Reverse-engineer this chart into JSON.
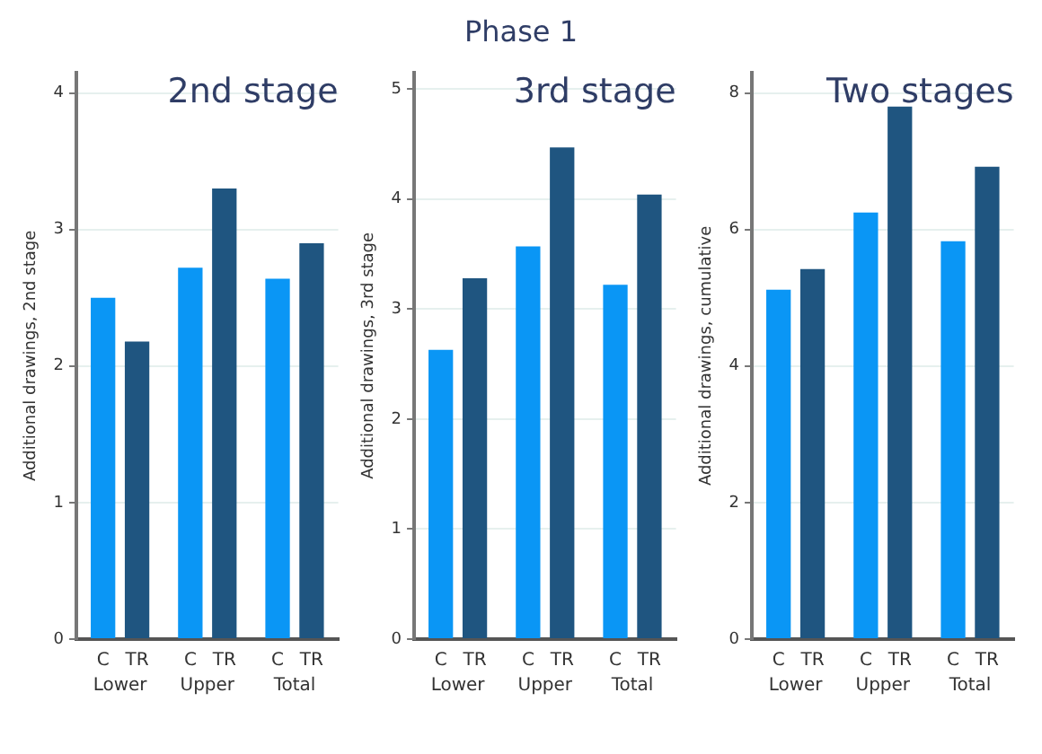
{
  "chart_data": [
    {
      "type": "other",
      "title": "Phase 1"
    },
    {
      "type": "bar",
      "title": "2nd stage",
      "ylabel": "Additional drawings, 2nd stage",
      "categories": [
        "Lower",
        "Upper",
        "Total"
      ],
      "ylim": [
        0,
        4.15
      ],
      "yticks": [
        0,
        1,
        2,
        3,
        4
      ],
      "grid": "y",
      "series": [
        {
          "name": "C",
          "color": "#0a96f5",
          "values": [
            2.5,
            2.72,
            2.64
          ]
        },
        {
          "name": "TR",
          "color": "#1f5580",
          "values": [
            2.18,
            3.3,
            2.9
          ]
        }
      ]
    },
    {
      "type": "bar",
      "title": "3rd stage",
      "ylabel": "Additional drawings, 3rd stage",
      "categories": [
        "Lower",
        "Upper",
        "Total"
      ],
      "ylim": [
        0,
        5.15
      ],
      "yticks": [
        0,
        1,
        2,
        3,
        4,
        5
      ],
      "grid": "y",
      "series": [
        {
          "name": "C",
          "color": "#0a96f5",
          "values": [
            2.63,
            3.57,
            3.22
          ]
        },
        {
          "name": "TR",
          "color": "#1f5580",
          "values": [
            3.28,
            4.47,
            4.04
          ]
        }
      ]
    },
    {
      "type": "bar",
      "title": "Two stages",
      "ylabel": "Additional drawings, cumulative",
      "categories": [
        "Lower",
        "Upper",
        "Total"
      ],
      "ylim": [
        0,
        8.3
      ],
      "yticks": [
        0,
        2,
        4,
        6,
        8
      ],
      "grid": "y",
      "series": [
        {
          "name": "C",
          "color": "#0a96f5",
          "values": [
            5.12,
            6.25,
            5.83
          ]
        },
        {
          "name": "TR",
          "color": "#1f5580",
          "values": [
            5.42,
            7.8,
            6.92
          ]
        }
      ]
    }
  ]
}
